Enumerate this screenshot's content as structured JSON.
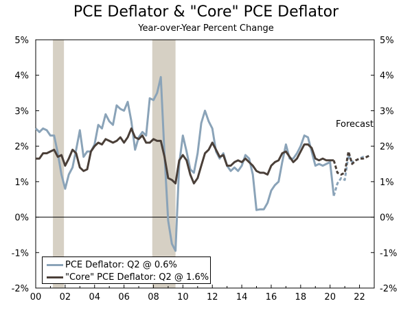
{
  "chart_data": {
    "type": "line",
    "title": "PCE Deflator & \"Core\" PCE Deflator",
    "subtitle": "Year-over-Year Percent Change",
    "xlabel": "",
    "ylabel": "",
    "xlim": [
      2000,
      2023
    ],
    "ylim": [
      -2,
      5
    ],
    "x_ticks": [
      2000,
      2002,
      2004,
      2006,
      2008,
      2010,
      2012,
      2014,
      2016,
      2018,
      2020,
      2022
    ],
    "x_tick_labels": [
      "00",
      "02",
      "04",
      "06",
      "08",
      "10",
      "12",
      "14",
      "16",
      "18",
      "20",
      "22"
    ],
    "y_ticks": [
      -2,
      -1,
      0,
      1,
      2,
      3,
      4,
      5
    ],
    "y_tick_labels": [
      "-2%",
      "-1%",
      "0%",
      "1%",
      "2%",
      "3%",
      "4%",
      "5%"
    ],
    "recessions": [
      [
        2001.17,
        2001.92
      ],
      [
        2007.92,
        2009.5
      ]
    ],
    "forecast_label": "Forecast",
    "forecast_start": 2020.25,
    "series": [
      {
        "name": "PCE Deflator",
        "legend_label": "PCE Deflator: Q2 @ 0.6%",
        "color": "#8aa3b8",
        "x": [
          2000.0,
          2000.25,
          2000.5,
          2000.75,
          2001.0,
          2001.25,
          2001.5,
          2001.75,
          2002.0,
          2002.25,
          2002.5,
          2002.75,
          2003.0,
          2003.25,
          2003.5,
          2003.75,
          2004.0,
          2004.25,
          2004.5,
          2004.75,
          2005.0,
          2005.25,
          2005.5,
          2005.75,
          2006.0,
          2006.25,
          2006.5,
          2006.75,
          2007.0,
          2007.25,
          2007.5,
          2007.75,
          2008.0,
          2008.25,
          2008.5,
          2008.75,
          2009.0,
          2009.25,
          2009.5,
          2009.75,
          2010.0,
          2010.25,
          2010.5,
          2010.75,
          2011.0,
          2011.25,
          2011.5,
          2011.75,
          2012.0,
          2012.25,
          2012.5,
          2012.75,
          2013.0,
          2013.25,
          2013.5,
          2013.75,
          2014.0,
          2014.25,
          2014.5,
          2014.75,
          2015.0,
          2015.25,
          2015.5,
          2015.75,
          2016.0,
          2016.25,
          2016.5,
          2016.75,
          2017.0,
          2017.25,
          2017.5,
          2017.75,
          2018.0,
          2018.25,
          2018.5,
          2018.75,
          2019.0,
          2019.25,
          2019.5,
          2019.75,
          2020.0,
          2020.25
        ],
        "values": [
          2.5,
          2.4,
          2.5,
          2.45,
          2.3,
          2.3,
          1.8,
          1.2,
          0.8,
          1.2,
          1.4,
          1.9,
          2.45,
          1.7,
          1.85,
          1.85,
          2.05,
          2.6,
          2.5,
          2.9,
          2.7,
          2.6,
          3.15,
          3.05,
          3.0,
          3.25,
          2.7,
          1.9,
          2.25,
          2.4,
          2.3,
          3.35,
          3.3,
          3.5,
          3.95,
          1.75,
          -0.1,
          -0.75,
          -0.95,
          1.5,
          2.3,
          1.85,
          1.35,
          1.25,
          1.8,
          2.65,
          3.0,
          2.7,
          2.5,
          1.85,
          1.65,
          1.8,
          1.45,
          1.3,
          1.4,
          1.3,
          1.45,
          1.75,
          1.65,
          1.2,
          0.2,
          0.22,
          0.22,
          0.4,
          0.75,
          0.9,
          1.0,
          1.55,
          2.05,
          1.65,
          1.65,
          1.8,
          2.0,
          2.3,
          2.25,
          1.85,
          1.45,
          1.5,
          1.45,
          1.5,
          1.55,
          0.6
        ]
      },
      {
        "name": "\"Core\" PCE Deflator",
        "legend_label": "\"Core\" PCE Deflator: Q2 @ 1.6%",
        "color": "#4a3f38",
        "x": [
          2000.0,
          2000.25,
          2000.5,
          2000.75,
          2001.0,
          2001.25,
          2001.5,
          2001.75,
          2002.0,
          2002.25,
          2002.5,
          2002.75,
          2003.0,
          2003.25,
          2003.5,
          2003.75,
          2004.0,
          2004.25,
          2004.5,
          2004.75,
          2005.0,
          2005.25,
          2005.5,
          2005.75,
          2006.0,
          2006.25,
          2006.5,
          2006.75,
          2007.0,
          2007.25,
          2007.5,
          2007.75,
          2008.0,
          2008.25,
          2008.5,
          2008.75,
          2009.0,
          2009.25,
          2009.5,
          2009.75,
          2010.0,
          2010.25,
          2010.5,
          2010.75,
          2011.0,
          2011.25,
          2011.5,
          2011.75,
          2012.0,
          2012.25,
          2012.5,
          2012.75,
          2013.0,
          2013.25,
          2013.5,
          2013.75,
          2014.0,
          2014.25,
          2014.5,
          2014.75,
          2015.0,
          2015.25,
          2015.5,
          2015.75,
          2016.0,
          2016.25,
          2016.5,
          2016.75,
          2017.0,
          2017.25,
          2017.5,
          2017.75,
          2018.0,
          2018.25,
          2018.5,
          2018.75,
          2019.0,
          2019.25,
          2019.5,
          2019.75,
          2020.0,
          2020.25
        ],
        "values": [
          1.65,
          1.65,
          1.8,
          1.8,
          1.85,
          1.9,
          1.7,
          1.75,
          1.45,
          1.65,
          1.9,
          1.8,
          1.4,
          1.3,
          1.35,
          1.85,
          2.0,
          2.1,
          2.05,
          2.2,
          2.15,
          2.1,
          2.15,
          2.25,
          2.1,
          2.25,
          2.5,
          2.25,
          2.2,
          2.3,
          2.1,
          2.1,
          2.2,
          2.15,
          2.15,
          1.7,
          1.1,
          1.05,
          0.95,
          1.6,
          1.75,
          1.6,
          1.2,
          0.95,
          1.1,
          1.45,
          1.8,
          1.9,
          2.1,
          1.9,
          1.7,
          1.75,
          1.45,
          1.45,
          1.55,
          1.6,
          1.55,
          1.65,
          1.55,
          1.45,
          1.3,
          1.25,
          1.25,
          1.2,
          1.45,
          1.55,
          1.6,
          1.8,
          1.85,
          1.7,
          1.55,
          1.65,
          1.85,
          2.05,
          2.05,
          1.95,
          1.65,
          1.6,
          1.65,
          1.6,
          1.6,
          1.6
        ]
      },
      {
        "name": "PCE Deflator Forecast",
        "color": "#8aa3b8",
        "dashed": true,
        "x": [
          2020.25,
          2020.5,
          2020.75,
          2021.0,
          2021.25,
          2021.5,
          2021.75,
          2022.0,
          2022.25,
          2022.5,
          2022.75
        ],
        "values": [
          0.6,
          0.95,
          1.1,
          1.05,
          1.75,
          1.55,
          1.6,
          1.65,
          1.7,
          1.7,
          1.75
        ]
      },
      {
        "name": "\"Core\" PCE Deflator Forecast",
        "color": "#4a3f38",
        "dashed": true,
        "x": [
          2020.25,
          2020.5,
          2020.75,
          2021.0,
          2021.25,
          2021.5,
          2021.75,
          2022.0,
          2022.25,
          2022.5,
          2022.75
        ],
        "values": [
          1.6,
          1.25,
          1.2,
          1.25,
          1.85,
          1.5,
          1.6,
          1.65,
          1.65,
          1.7,
          1.75
        ]
      }
    ]
  }
}
